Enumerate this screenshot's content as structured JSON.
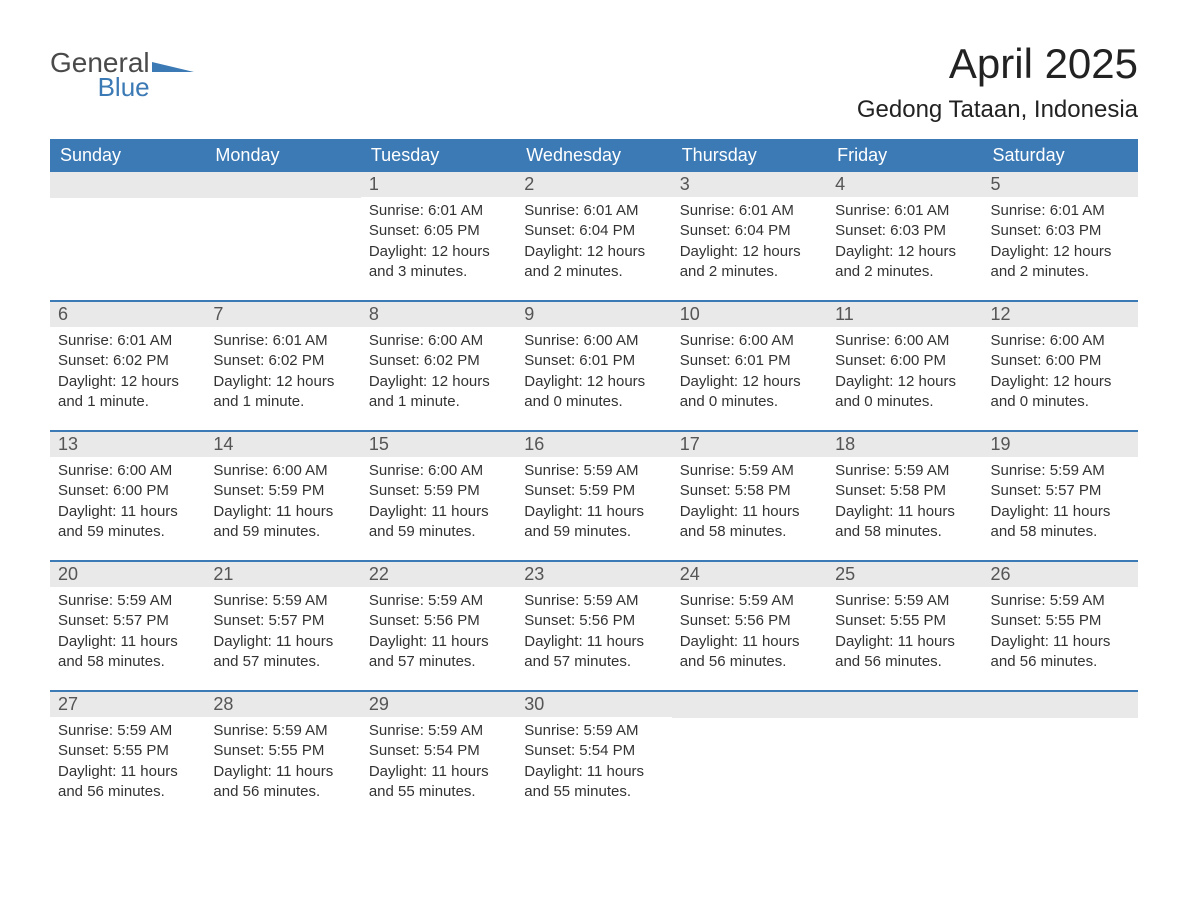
{
  "logo": {
    "general": "General",
    "blue": "Blue",
    "mark_color": "#3c7ab5"
  },
  "title": "April 2025",
  "subtitle": "Gedong Tataan, Indonesia",
  "colors": {
    "header_bg": "#3c7ab5",
    "header_text": "#ffffff",
    "daynum_bg": "#e9e9e9",
    "daynum_text": "#555555",
    "body_text": "#333333",
    "week_border": "#3c7ab5",
    "page_bg": "#ffffff"
  },
  "typography": {
    "title_fontsize": 42,
    "subtitle_fontsize": 24,
    "weekday_fontsize": 18,
    "daynum_fontsize": 18,
    "body_fontsize": 15
  },
  "weekdays": [
    "Sunday",
    "Monday",
    "Tuesday",
    "Wednesday",
    "Thursday",
    "Friday",
    "Saturday"
  ],
  "weeks": [
    [
      {
        "num": "",
        "lines": []
      },
      {
        "num": "",
        "lines": []
      },
      {
        "num": "1",
        "lines": [
          "Sunrise: 6:01 AM",
          "Sunset: 6:05 PM",
          "Daylight: 12 hours",
          "and 3 minutes."
        ]
      },
      {
        "num": "2",
        "lines": [
          "Sunrise: 6:01 AM",
          "Sunset: 6:04 PM",
          "Daylight: 12 hours",
          "and 2 minutes."
        ]
      },
      {
        "num": "3",
        "lines": [
          "Sunrise: 6:01 AM",
          "Sunset: 6:04 PM",
          "Daylight: 12 hours",
          "and 2 minutes."
        ]
      },
      {
        "num": "4",
        "lines": [
          "Sunrise: 6:01 AM",
          "Sunset: 6:03 PM",
          "Daylight: 12 hours",
          "and 2 minutes."
        ]
      },
      {
        "num": "5",
        "lines": [
          "Sunrise: 6:01 AM",
          "Sunset: 6:03 PM",
          "Daylight: 12 hours",
          "and 2 minutes."
        ]
      }
    ],
    [
      {
        "num": "6",
        "lines": [
          "Sunrise: 6:01 AM",
          "Sunset: 6:02 PM",
          "Daylight: 12 hours",
          "and 1 minute."
        ]
      },
      {
        "num": "7",
        "lines": [
          "Sunrise: 6:01 AM",
          "Sunset: 6:02 PM",
          "Daylight: 12 hours",
          "and 1 minute."
        ]
      },
      {
        "num": "8",
        "lines": [
          "Sunrise: 6:00 AM",
          "Sunset: 6:02 PM",
          "Daylight: 12 hours",
          "and 1 minute."
        ]
      },
      {
        "num": "9",
        "lines": [
          "Sunrise: 6:00 AM",
          "Sunset: 6:01 PM",
          "Daylight: 12 hours",
          "and 0 minutes."
        ]
      },
      {
        "num": "10",
        "lines": [
          "Sunrise: 6:00 AM",
          "Sunset: 6:01 PM",
          "Daylight: 12 hours",
          "and 0 minutes."
        ]
      },
      {
        "num": "11",
        "lines": [
          "Sunrise: 6:00 AM",
          "Sunset: 6:00 PM",
          "Daylight: 12 hours",
          "and 0 minutes."
        ]
      },
      {
        "num": "12",
        "lines": [
          "Sunrise: 6:00 AM",
          "Sunset: 6:00 PM",
          "Daylight: 12 hours",
          "and 0 minutes."
        ]
      }
    ],
    [
      {
        "num": "13",
        "lines": [
          "Sunrise: 6:00 AM",
          "Sunset: 6:00 PM",
          "Daylight: 11 hours",
          "and 59 minutes."
        ]
      },
      {
        "num": "14",
        "lines": [
          "Sunrise: 6:00 AM",
          "Sunset: 5:59 PM",
          "Daylight: 11 hours",
          "and 59 minutes."
        ]
      },
      {
        "num": "15",
        "lines": [
          "Sunrise: 6:00 AM",
          "Sunset: 5:59 PM",
          "Daylight: 11 hours",
          "and 59 minutes."
        ]
      },
      {
        "num": "16",
        "lines": [
          "Sunrise: 5:59 AM",
          "Sunset: 5:59 PM",
          "Daylight: 11 hours",
          "and 59 minutes."
        ]
      },
      {
        "num": "17",
        "lines": [
          "Sunrise: 5:59 AM",
          "Sunset: 5:58 PM",
          "Daylight: 11 hours",
          "and 58 minutes."
        ]
      },
      {
        "num": "18",
        "lines": [
          "Sunrise: 5:59 AM",
          "Sunset: 5:58 PM",
          "Daylight: 11 hours",
          "and 58 minutes."
        ]
      },
      {
        "num": "19",
        "lines": [
          "Sunrise: 5:59 AM",
          "Sunset: 5:57 PM",
          "Daylight: 11 hours",
          "and 58 minutes."
        ]
      }
    ],
    [
      {
        "num": "20",
        "lines": [
          "Sunrise: 5:59 AM",
          "Sunset: 5:57 PM",
          "Daylight: 11 hours",
          "and 58 minutes."
        ]
      },
      {
        "num": "21",
        "lines": [
          "Sunrise: 5:59 AM",
          "Sunset: 5:57 PM",
          "Daylight: 11 hours",
          "and 57 minutes."
        ]
      },
      {
        "num": "22",
        "lines": [
          "Sunrise: 5:59 AM",
          "Sunset: 5:56 PM",
          "Daylight: 11 hours",
          "and 57 minutes."
        ]
      },
      {
        "num": "23",
        "lines": [
          "Sunrise: 5:59 AM",
          "Sunset: 5:56 PM",
          "Daylight: 11 hours",
          "and 57 minutes."
        ]
      },
      {
        "num": "24",
        "lines": [
          "Sunrise: 5:59 AM",
          "Sunset: 5:56 PM",
          "Daylight: 11 hours",
          "and 56 minutes."
        ]
      },
      {
        "num": "25",
        "lines": [
          "Sunrise: 5:59 AM",
          "Sunset: 5:55 PM",
          "Daylight: 11 hours",
          "and 56 minutes."
        ]
      },
      {
        "num": "26",
        "lines": [
          "Sunrise: 5:59 AM",
          "Sunset: 5:55 PM",
          "Daylight: 11 hours",
          "and 56 minutes."
        ]
      }
    ],
    [
      {
        "num": "27",
        "lines": [
          "Sunrise: 5:59 AM",
          "Sunset: 5:55 PM",
          "Daylight: 11 hours",
          "and 56 minutes."
        ]
      },
      {
        "num": "28",
        "lines": [
          "Sunrise: 5:59 AM",
          "Sunset: 5:55 PM",
          "Daylight: 11 hours",
          "and 56 minutes."
        ]
      },
      {
        "num": "29",
        "lines": [
          "Sunrise: 5:59 AM",
          "Sunset: 5:54 PM",
          "Daylight: 11 hours",
          "and 55 minutes."
        ]
      },
      {
        "num": "30",
        "lines": [
          "Sunrise: 5:59 AM",
          "Sunset: 5:54 PM",
          "Daylight: 11 hours",
          "and 55 minutes."
        ]
      },
      {
        "num": "",
        "lines": []
      },
      {
        "num": "",
        "lines": []
      },
      {
        "num": "",
        "lines": []
      }
    ]
  ]
}
